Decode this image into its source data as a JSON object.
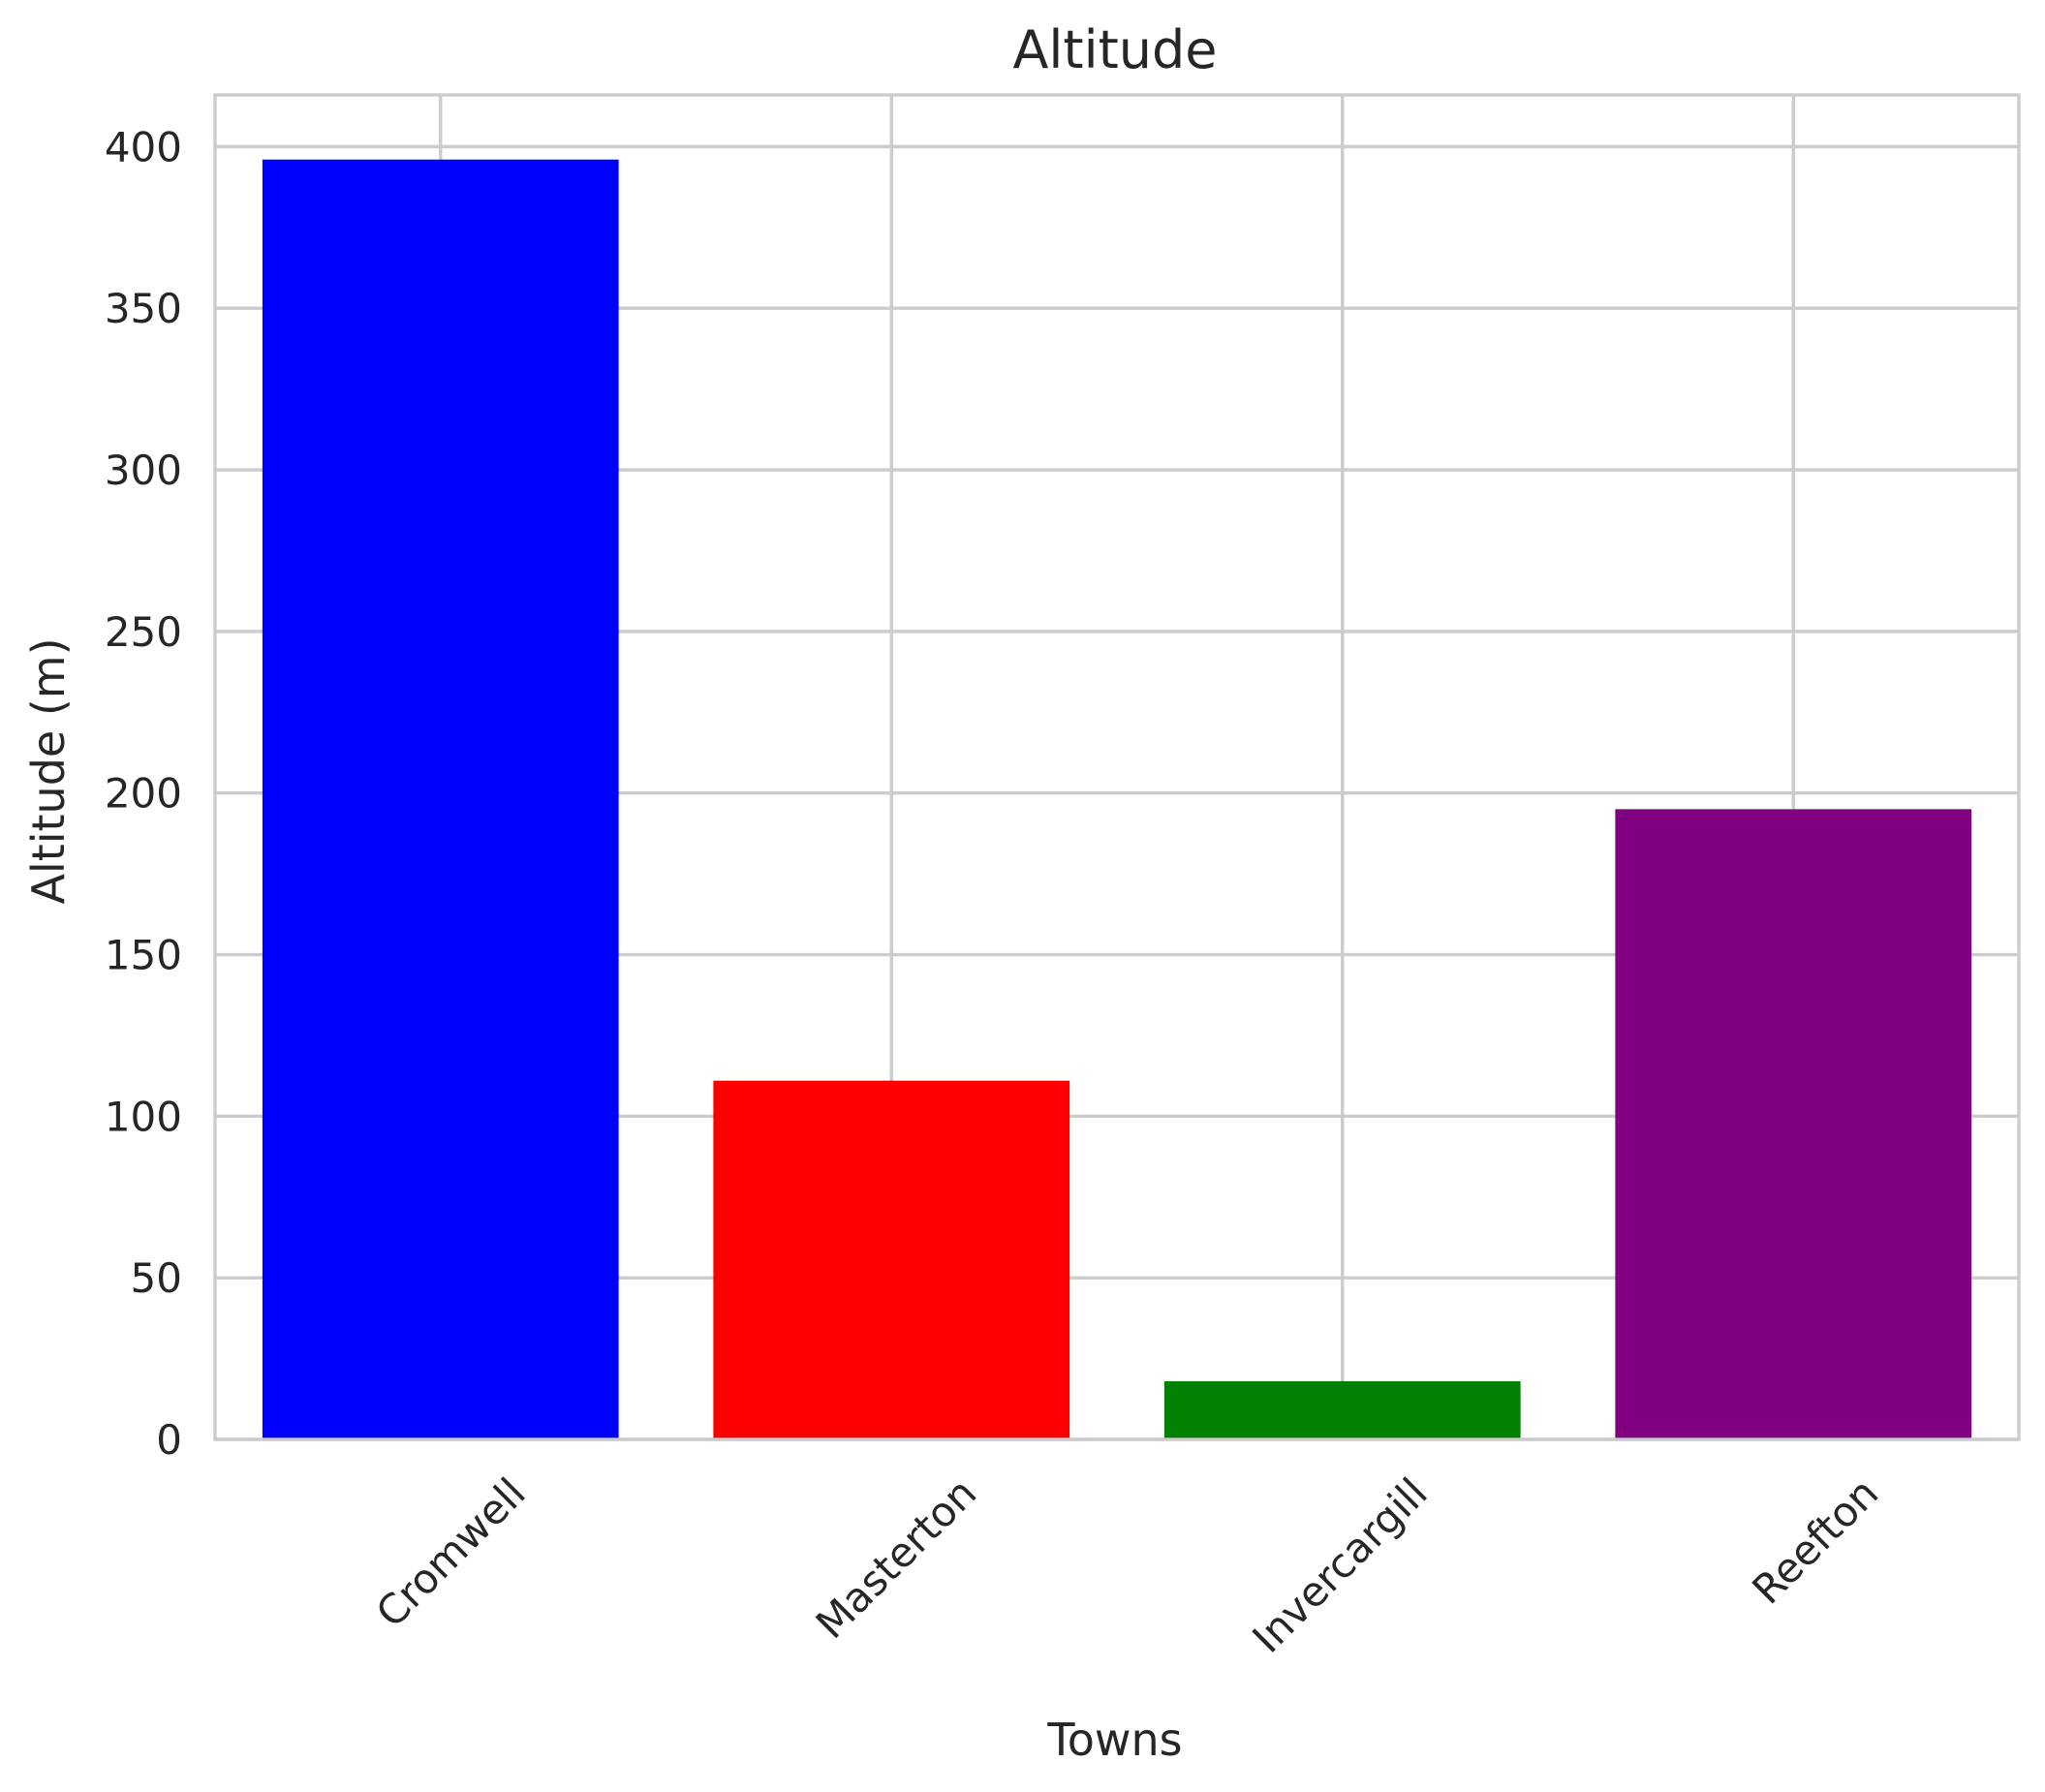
{
  "chart_data": {
    "type": "bar",
    "title": "Altitude",
    "xlabel": "Towns",
    "ylabel": "Altitude (m)",
    "categories": [
      "Cromwell",
      "Masterton",
      "Invercargill",
      "Reefton"
    ],
    "values": [
      396,
      111,
      18,
      195
    ],
    "colors": [
      "#0000ff",
      "#ff0000",
      "#008000",
      "#800080"
    ],
    "ylim": [
      0,
      416
    ],
    "yticks": [
      0,
      50,
      100,
      150,
      200,
      250,
      300,
      350,
      400
    ],
    "ytick_labels": [
      "0",
      "50",
      "100",
      "150",
      "200",
      "250",
      "300",
      "350",
      "400"
    ],
    "grid": true,
    "xtick_rotation_deg": 45
  }
}
